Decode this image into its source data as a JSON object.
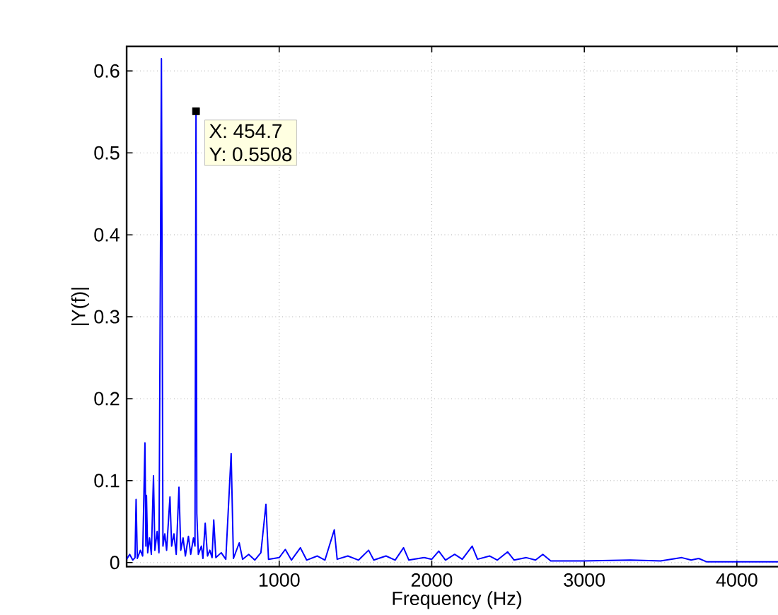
{
  "chart_data": {
    "type": "line",
    "xlabel": "Frequency (Hz)",
    "ylabel": "|Y(f)|",
    "xlim": [
      0,
      4330
    ],
    "ylim": [
      -0.005,
      0.63
    ],
    "xticks": [
      1000,
      2000,
      3000,
      4000
    ],
    "yticks": [
      0,
      0.1,
      0.2,
      0.3,
      0.4,
      0.5,
      0.6
    ],
    "grid": true,
    "line_style": "solid",
    "annotations": [
      {
        "text": "X: 454.7",
        "x": 454.7,
        "y": 0.5508
      },
      "Y: 0.5508"
    ],
    "series": [
      {
        "color": "#0000ff",
        "x": [
          0,
          20,
          40,
          55,
          62,
          70,
          90,
          105,
          120,
          126,
          130,
          138,
          150,
          162,
          176,
          185,
          200,
          212,
          228,
          238,
          250,
          262,
          284,
          295,
          310,
          325,
          343,
          355,
          370,
          385,
          405,
          420,
          438,
          448,
          454.7,
          460,
          470,
          490,
          500,
          515,
          530,
          545,
          560,
          571,
          585,
          620,
          650,
          685,
          700,
          738,
          760,
          800,
          840,
          880,
          913,
          930,
          1000,
          1040,
          1080,
          1139,
          1180,
          1250,
          1300,
          1361,
          1380,
          1450,
          1520,
          1586,
          1620,
          1700,
          1760,
          1815,
          1850,
          1950,
          2000,
          2046,
          2090,
          2150,
          2200,
          2265,
          2300,
          2380,
          2430,
          2497,
          2540,
          2620,
          2680,
          2728,
          2780,
          3000,
          3300,
          3500,
          3639,
          3700,
          3750,
          3800,
          4330
        ],
        "values": [
          0.004,
          0.01,
          0.003,
          0.006,
          0.077,
          0.005,
          0.015,
          0.008,
          0.146,
          0.02,
          0.082,
          0.012,
          0.03,
          0.01,
          0.106,
          0.015,
          0.038,
          0.012,
          0.615,
          0.02,
          0.035,
          0.015,
          0.08,
          0.02,
          0.035,
          0.01,
          0.092,
          0.015,
          0.03,
          0.008,
          0.032,
          0.01,
          0.03,
          0.02,
          0.5508,
          0.06,
          0.01,
          0.02,
          0.005,
          0.048,
          0.008,
          0.015,
          0.006,
          0.052,
          0.006,
          0.012,
          0.004,
          0.133,
          0.005,
          0.024,
          0.004,
          0.01,
          0.003,
          0.012,
          0.071,
          0.004,
          0.006,
          0.016,
          0.003,
          0.018,
          0.003,
          0.008,
          0.003,
          0.04,
          0.004,
          0.008,
          0.003,
          0.015,
          0.003,
          0.008,
          0.003,
          0.018,
          0.003,
          0.006,
          0.004,
          0.014,
          0.003,
          0.01,
          0.004,
          0.02,
          0.004,
          0.008,
          0.003,
          0.013,
          0.003,
          0.006,
          0.003,
          0.01,
          0.002,
          0.002,
          0.003,
          0.002,
          0.006,
          0.003,
          0.005,
          0.001,
          0.001
        ]
      }
    ]
  }
}
